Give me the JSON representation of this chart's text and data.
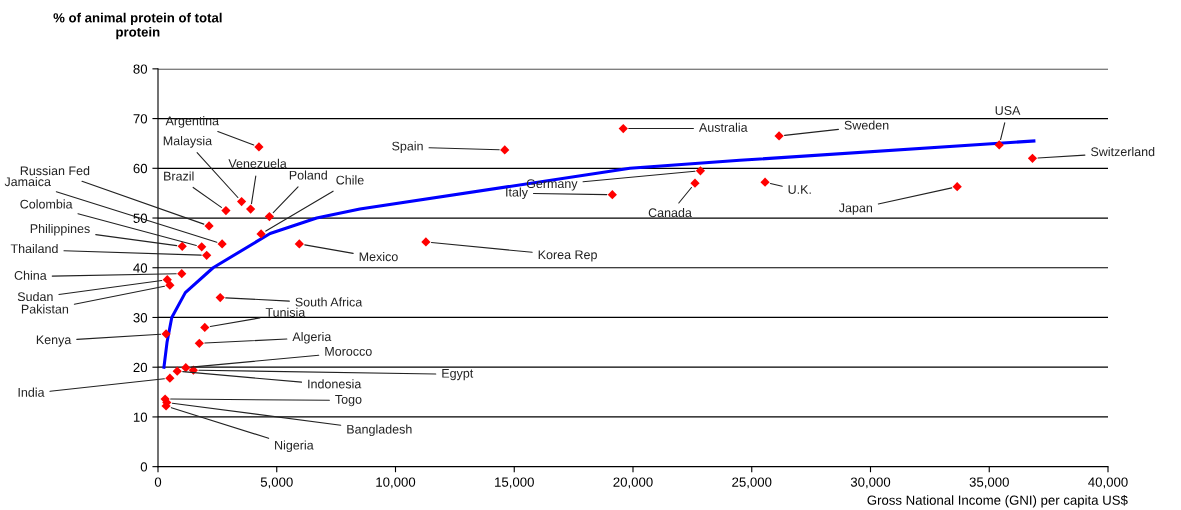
{
  "chart_data": {
    "type": "scatter",
    "ylabel": "% of animal protein of total\nprotein",
    "xlabel": "Gross National Income (GNI) per capita US$",
    "xlim": [
      0,
      40000
    ],
    "ylim": [
      0,
      80
    ],
    "xticks": [
      0,
      {
        "value": 5000,
        "label": "5,000"
      },
      {
        "value": 10000,
        "label": "10,000"
      },
      {
        "value": 15000,
        "label": "15,000"
      },
      {
        "value": 20000,
        "label": "20,000"
      },
      {
        "value": 25000,
        "label": "25,000"
      },
      {
        "value": 30000,
        "label": "30,000"
      },
      {
        "value": 35000,
        "label": "35,000"
      },
      {
        "value": 40000,
        "label": "40,000"
      }
    ],
    "yticks": [
      0,
      10,
      20,
      30,
      40,
      50,
      60,
      70,
      80
    ],
    "grid": "y",
    "series": [
      {
        "color": "#ff0000",
        "marker": "diamond",
        "x": [
          4250,
          3520,
          3900,
          2860,
          4690,
          4340,
          2150,
          2700,
          1840,
          1020,
          2050,
          5950,
          1000,
          390,
          500,
          2620,
          1970,
          340,
          1740,
          1170,
          1490,
          810,
          500,
          300,
          370,
          340,
          14600,
          19590,
          11280,
          19130,
          22840,
          22610,
          26150,
          25560,
          33650,
          35420,
          36820
        ],
        "values": [
          64.3,
          53.3,
          51.8,
          51.5,
          50.3,
          46.8,
          48.4,
          44.8,
          44.2,
          44.3,
          42.5,
          44.8,
          38.8,
          37.6,
          36.5,
          34.0,
          28.0,
          26.7,
          24.8,
          19.9,
          19.4,
          19.2,
          17.8,
          13.6,
          12.9,
          12.2,
          63.7,
          68.0,
          45.2,
          54.7,
          59.5,
          57.0,
          66.5,
          57.2,
          56.3,
          64.7,
          62.0
        ]
      },
      {
        "type": "line",
        "color": "#0000ff",
        "marker": "none",
        "line_style": "solid",
        "x": [
          250,
          380,
          580,
          1150,
          2320,
          4720,
          6680,
          8500,
          19870,
          24500,
          36880
        ],
        "values": [
          20,
          25,
          30,
          35,
          40,
          46.9,
          50,
          51.8,
          60,
          61.6,
          65.5
        ]
      }
    ],
    "annotations": [
      {
        "text": "Argentina",
        "x": 4250,
        "y": 64.3
      },
      {
        "text": "Malaysia",
        "x": 3520,
        "y": 53.3
      },
      {
        "text": "Venezuela",
        "x": 3900,
        "y": 51.8
      },
      {
        "text": "Brazil",
        "x": 2860,
        "y": 51.5
      },
      {
        "text": "Poland",
        "x": 4690,
        "y": 50.3
      },
      {
        "text": "Chile",
        "x": 4340,
        "y": 46.8
      },
      {
        "text": "Russian Fed",
        "x": 2150,
        "y": 48.4
      },
      {
        "text": "Jamaica",
        "x": 2700,
        "y": 44.8
      },
      {
        "text": "Colombia",
        "x": 1840,
        "y": 44.2
      },
      {
        "text": "Philippines",
        "x": 1020,
        "y": 44.3
      },
      {
        "text": "Thailand",
        "x": 2050,
        "y": 42.5
      },
      {
        "text": "Mexico",
        "x": 5950,
        "y": 44.8
      },
      {
        "text": "China",
        "x": 1000,
        "y": 38.8
      },
      {
        "text": "Sudan",
        "x": 390,
        "y": 37.6
      },
      {
        "text": "Pakistan",
        "x": 500,
        "y": 36.5
      },
      {
        "text": "South Africa",
        "x": 2620,
        "y": 34.0
      },
      {
        "text": "Tunisia",
        "x": 1970,
        "y": 28.0
      },
      {
        "text": "Kenya",
        "x": 340,
        "y": 26.7
      },
      {
        "text": "Algeria",
        "x": 1740,
        "y": 24.8
      },
      {
        "text": "Morocco",
        "x": 1170,
        "y": 19.9
      },
      {
        "text": "Egypt",
        "x": 1490,
        "y": 19.4
      },
      {
        "text": "Indonesia",
        "x": 810,
        "y": 19.2
      },
      {
        "text": "India",
        "x": 500,
        "y": 17.8
      },
      {
        "text": "Togo",
        "x": 300,
        "y": 13.6
      },
      {
        "text": "Bangladesh",
        "x": 370,
        "y": 12.9
      },
      {
        "text": "Nigeria",
        "x": 340,
        "y": 12.2
      },
      {
        "text": "Spain",
        "x": 14600,
        "y": 63.7
      },
      {
        "text": "Australia",
        "x": 19590,
        "y": 68.0
      },
      {
        "text": "Korea Rep",
        "x": 11280,
        "y": 45.2
      },
      {
        "text": "Italy",
        "x": 19130,
        "y": 54.7
      },
      {
        "text": "Germany",
        "x": 22840,
        "y": 59.5
      },
      {
        "text": "Canada",
        "x": 22610,
        "y": 57.0
      },
      {
        "text": "Sweden",
        "x": 26150,
        "y": 66.5
      },
      {
        "text": "U.K.",
        "x": 25560,
        "y": 57.2
      },
      {
        "text": "Japan",
        "x": 33650,
        "y": 56.3
      },
      {
        "text": "USA",
        "x": 35420,
        "y": 64.7
      },
      {
        "text": "Switzerland",
        "x": 36820,
        "y": 62.0
      }
    ]
  }
}
